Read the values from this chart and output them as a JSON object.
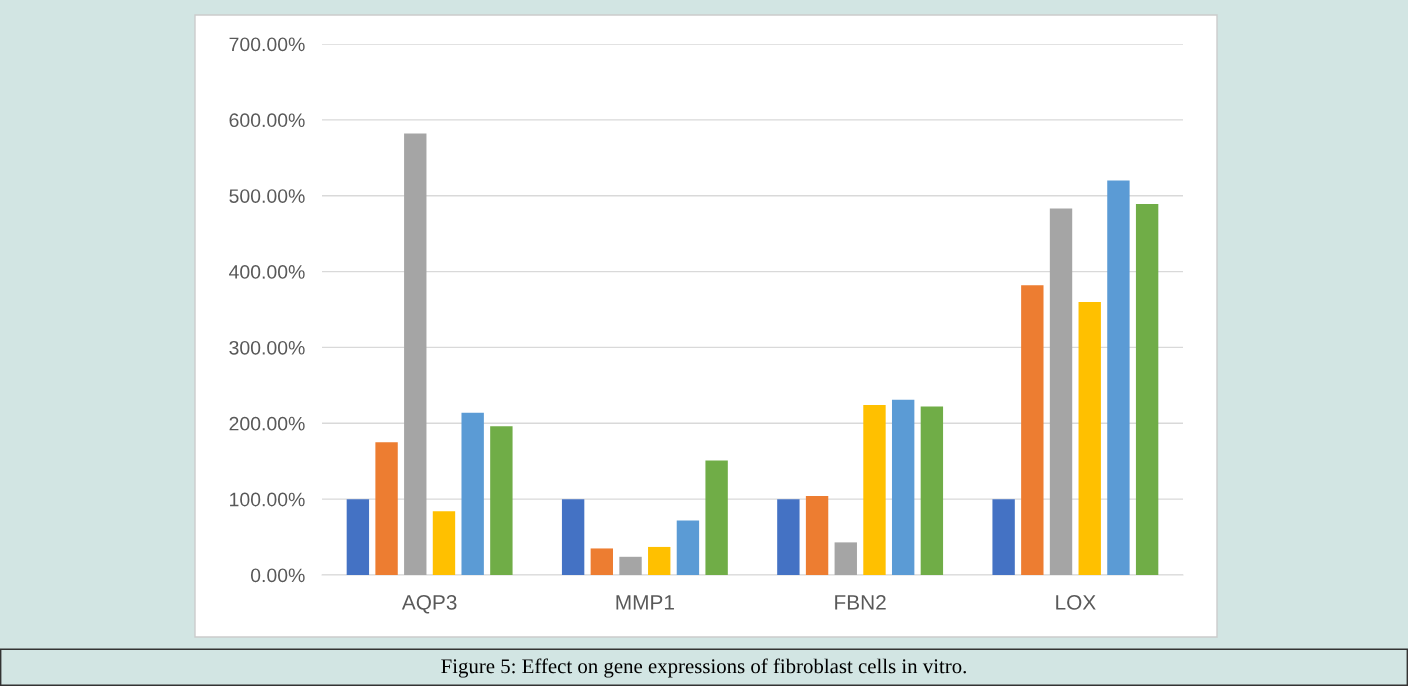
{
  "chart_data": {
    "type": "bar",
    "categories": [
      "AQP3",
      "MMP1",
      "FBN2",
      "LOX"
    ],
    "series": [
      {
        "color": "#4472c4",
        "values": [
          100,
          100,
          100,
          100
        ]
      },
      {
        "color": "#ed7d31",
        "values": [
          175,
          35,
          104,
          382
        ]
      },
      {
        "color": "#a5a5a5",
        "values": [
          582,
          24,
          43,
          483
        ]
      },
      {
        "color": "#ffc000",
        "values": [
          84,
          37,
          224,
          360
        ]
      },
      {
        "color": "#5b9bd5",
        "values": [
          214,
          72,
          231,
          520
        ]
      },
      {
        "color": "#70ad47",
        "values": [
          196,
          151,
          222,
          489
        ]
      }
    ],
    "ylim": [
      0,
      700
    ],
    "yticks": [
      {
        "value": 0,
        "label": "0.00%"
      },
      {
        "value": 100,
        "label": "100.00%"
      },
      {
        "value": 200,
        "label": "200.00%"
      },
      {
        "value": 300,
        "label": "300.00%"
      },
      {
        "value": 400,
        "label": "400.00%"
      },
      {
        "value": 500,
        "label": "500.00%"
      },
      {
        "value": 600,
        "label": "600.00%"
      },
      {
        "value": 700,
        "label": "700.00%"
      }
    ],
    "grid": "y",
    "annotations": [
      "Figure 5: Effect on gene expressions of fibroblast cells in vitro."
    ]
  }
}
